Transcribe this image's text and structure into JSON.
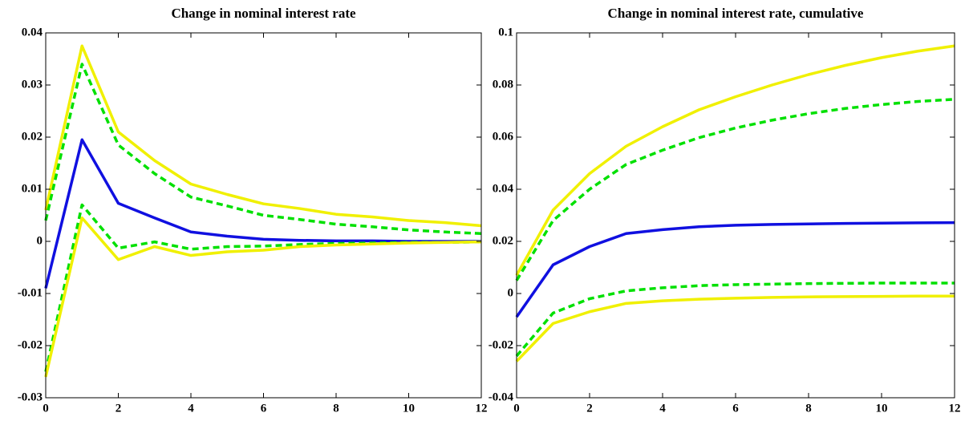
{
  "chart_data": [
    {
      "type": "line",
      "title": "Change in nominal interest rate",
      "x": [
        0,
        1,
        2,
        3,
        4,
        5,
        6,
        7,
        8,
        9,
        10,
        11,
        12
      ],
      "xlim": [
        0,
        12
      ],
      "xticks": [
        0,
        2,
        4,
        6,
        8,
        10,
        12
      ],
      "ylim": [
        -0.03,
        0.04
      ],
      "yticks": [
        -0.03,
        -0.02,
        -0.01,
        0,
        0.01,
        0.02,
        0.03,
        0.04
      ],
      "series": [
        {
          "color": "#f0f000",
          "dashed": false,
          "values": [
            0.006,
            0.0375,
            0.021,
            0.0155,
            0.011,
            0.009,
            0.0072,
            0.0063,
            0.0052,
            0.0047,
            0.004,
            0.0036,
            0.003
          ]
        },
        {
          "color": "#00e000",
          "dashed": true,
          "values": [
            0.004,
            0.034,
            0.0185,
            0.013,
            0.0085,
            0.0068,
            0.005,
            0.0042,
            0.0033,
            0.0028,
            0.0022,
            0.0018,
            0.0015
          ]
        },
        {
          "color": "#1010e0",
          "dashed": false,
          "values": [
            -0.009,
            0.0195,
            0.0073,
            0.0045,
            0.0018,
            0.001,
            0.0004,
            0.0002,
            0.0001,
            0.0001,
            0,
            0,
            0
          ]
        },
        {
          "color": "#00e000",
          "dashed": true,
          "values": [
            -0.025,
            0.007,
            -0.0013,
            -0.0001,
            -0.0015,
            -0.001,
            -0.0009,
            -0.0006,
            -0.0004,
            -0.0003,
            -0.0002,
            -0.0002,
            -0.0001
          ]
        },
        {
          "color": "#f0f000",
          "dashed": false,
          "values": [
            -0.026,
            0.0045,
            -0.0035,
            -0.001,
            -0.0027,
            -0.002,
            -0.0017,
            -0.001,
            -0.0007,
            -0.0005,
            -0.0003,
            -0.0002,
            -0.0001
          ]
        }
      ]
    },
    {
      "type": "line",
      "title": "Change in nominal interest rate, cumulative",
      "x": [
        0,
        1,
        2,
        3,
        4,
        5,
        6,
        7,
        8,
        9,
        10,
        11,
        12
      ],
      "xlim": [
        0,
        12
      ],
      "xticks": [
        0,
        2,
        4,
        6,
        8,
        10,
        12
      ],
      "ylim": [
        -0.04,
        0.1
      ],
      "yticks": [
        -0.04,
        -0.02,
        0,
        0.02,
        0.04,
        0.06,
        0.08,
        0.1
      ],
      "series": [
        {
          "color": "#f0f000",
          "dashed": false,
          "values": [
            0.007,
            0.032,
            0.046,
            0.0565,
            0.064,
            0.0705,
            0.0755,
            0.08,
            0.084,
            0.0875,
            0.0905,
            0.093,
            0.095
          ]
        },
        {
          "color": "#00e000",
          "dashed": true,
          "values": [
            0.005,
            0.028,
            0.04,
            0.0495,
            0.055,
            0.0598,
            0.0635,
            0.0665,
            0.069,
            0.071,
            0.0725,
            0.0737,
            0.0745
          ]
        },
        {
          "color": "#1010e0",
          "dashed": false,
          "values": [
            -0.009,
            0.011,
            0.018,
            0.023,
            0.0245,
            0.0256,
            0.0262,
            0.0265,
            0.0267,
            0.0269,
            0.027,
            0.0271,
            0.0272
          ]
        },
        {
          "color": "#00e000",
          "dashed": true,
          "values": [
            -0.024,
            -0.0075,
            -0.002,
            0.001,
            0.0022,
            0.003,
            0.0034,
            0.0036,
            0.0038,
            0.0039,
            0.004,
            0.004,
            0.004
          ]
        },
        {
          "color": "#f0f000",
          "dashed": false,
          "values": [
            -0.026,
            -0.0115,
            -0.007,
            -0.0038,
            -0.0028,
            -0.0022,
            -0.0018,
            -0.0015,
            -0.0013,
            -0.0012,
            -0.0011,
            -0.001,
            -0.001
          ]
        }
      ]
    }
  ]
}
